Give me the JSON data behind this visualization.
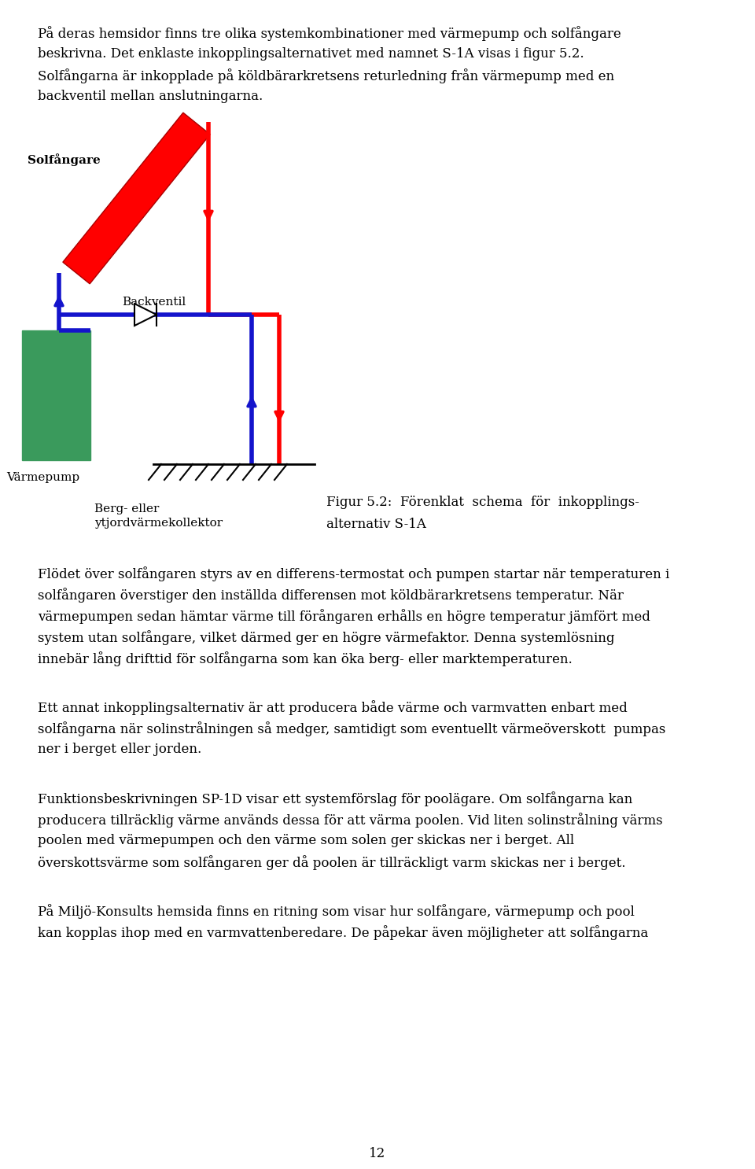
{
  "page_text_top": [
    "På deras hemsidor finns tre olika systemkombinationer med värmepump och solfångare",
    "beskrivna. Det enklaste inkopplingsalternativet med namnet S-1A visas i figur 5.2.",
    "Solfångarna är inkopplade på köldbärarkretsens returledning från värmepump med en",
    "backventil mellan anslutningarna."
  ],
  "page_text_bottom_para1": [
    "Flödet över solfångaren styrs av en differens-termostat och pumpen startar när temperaturen i",
    "solfångaren överstiger den inställda differensen mot köldbärarkretsens temperatur. När",
    "värmepumpen sedan hämtar värme till förångaren erhålls en högre temperatur jämfört med",
    "system utan solfångare, vilket därmed ger en högre värmefaktor. Denna systemlösning",
    "innebär lång drifttid för solfångarna som kan öka berg- eller marktemperaturen."
  ],
  "page_text_bottom_para2": [
    "Ett annat inkopplingsalternativ är att producera både värme och varmvatten enbart med",
    "solfångarna när solinstrålningen så medger, samtidigt som eventuellt värmeöverskott  pumpas",
    "ner i berget eller jorden."
  ],
  "page_text_bottom_para3": [
    "Funktionsbeskrivningen SP-1D visar ett systemförslag för poolägare. Om solfångarna kan",
    "producera tillräcklig värme används dessa för att värma poolen. Vid liten solinstrålning värms",
    "poolen med värmepumpen och den värme som solen ger skickas ner i berget. All",
    "överskottsvärme som solfångaren ger då poolen är tillräckligt varm skickas ner i berget."
  ],
  "page_text_bottom_para4": [
    "På Miljö-Konsults hemsida finns en ritning som visar hur solfångare, värmepump och pool",
    "kan kopplas ihop med en varmvattenberedare. De påpekar även möjligheter att solfångarna"
  ],
  "figure_caption_line1": "Figur 5.2:  Förenklat  schema  för  inkopplings-",
  "figure_caption_line2": "alternativ S-1A",
  "label_solfangare": "Solfångare",
  "label_backventil": "Backventil",
  "label_varmepump": "Värmepump",
  "label_berg_line1": "Berg- eller",
  "label_berg_line2": "ytjordvärmekollektor",
  "page_number": "12",
  "red_color": "#FF0000",
  "blue_color": "#1414CC",
  "green_color": "#3A9A5C",
  "background_color": "#FFFFFF",
  "text_color": "#000000"
}
